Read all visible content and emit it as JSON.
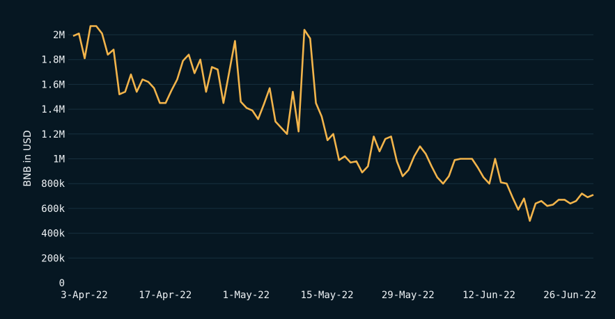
{
  "chart_data": {
    "type": "line",
    "title": "",
    "xlabel": "",
    "ylabel": "BNB in USD",
    "ylim": [
      0,
      2000000
    ],
    "grid": true,
    "line_color": "#f2b44b",
    "background": "#061722",
    "start_date": "3-Apr-22",
    "x_tick_labels": [
      "3-Apr-22",
      "17-Apr-22",
      "1-May-22",
      "15-May-22",
      "29-May-22",
      "12-Jun-22",
      "26-Jun-22"
    ],
    "x_tick_day_index": [
      0,
      14,
      28,
      42,
      56,
      70,
      84
    ],
    "y_ticks": [
      0,
      200000,
      400000,
      600000,
      800000,
      1000000,
      1200000,
      1400000,
      1600000,
      1800000,
      2000000
    ],
    "y_tick_labels": [
      "0",
      "200k",
      "400k",
      "600k",
      "800k",
      "1M",
      "1.2M",
      "1.4M",
      "1.6M",
      "1.8M",
      "2M"
    ],
    "series": [
      {
        "name": "BNB in USD",
        "values_millions": [
          1.99,
          2.01,
          1.81,
          2.07,
          2.07,
          2.01,
          1.84,
          1.88,
          1.52,
          1.54,
          1.68,
          1.54,
          1.64,
          1.62,
          1.57,
          1.45,
          1.45,
          1.55,
          1.64,
          1.79,
          1.84,
          1.69,
          1.8,
          1.54,
          1.74,
          1.72,
          1.45,
          1.7,
          1.95,
          1.46,
          1.41,
          1.39,
          1.32,
          1.44,
          1.57,
          1.3,
          1.25,
          1.2,
          1.54,
          1.22,
          2.04,
          1.97,
          1.45,
          1.34,
          1.15,
          1.2,
          0.99,
          1.02,
          0.97,
          0.98,
          0.89,
          0.94,
          1.18,
          1.06,
          1.16,
          1.18,
          0.98,
          0.86,
          0.91,
          1.02,
          1.1,
          1.04,
          0.94,
          0.85,
          0.8,
          0.86,
          0.99,
          1.0,
          1.0,
          1.0,
          0.93,
          0.85,
          0.8,
          1.0,
          0.81,
          0.8,
          0.69,
          0.59,
          0.68,
          0.5,
          0.64,
          0.66,
          0.62,
          0.63,
          0.67,
          0.67,
          0.64,
          0.66,
          0.72,
          0.69,
          0.71
        ]
      }
    ]
  }
}
